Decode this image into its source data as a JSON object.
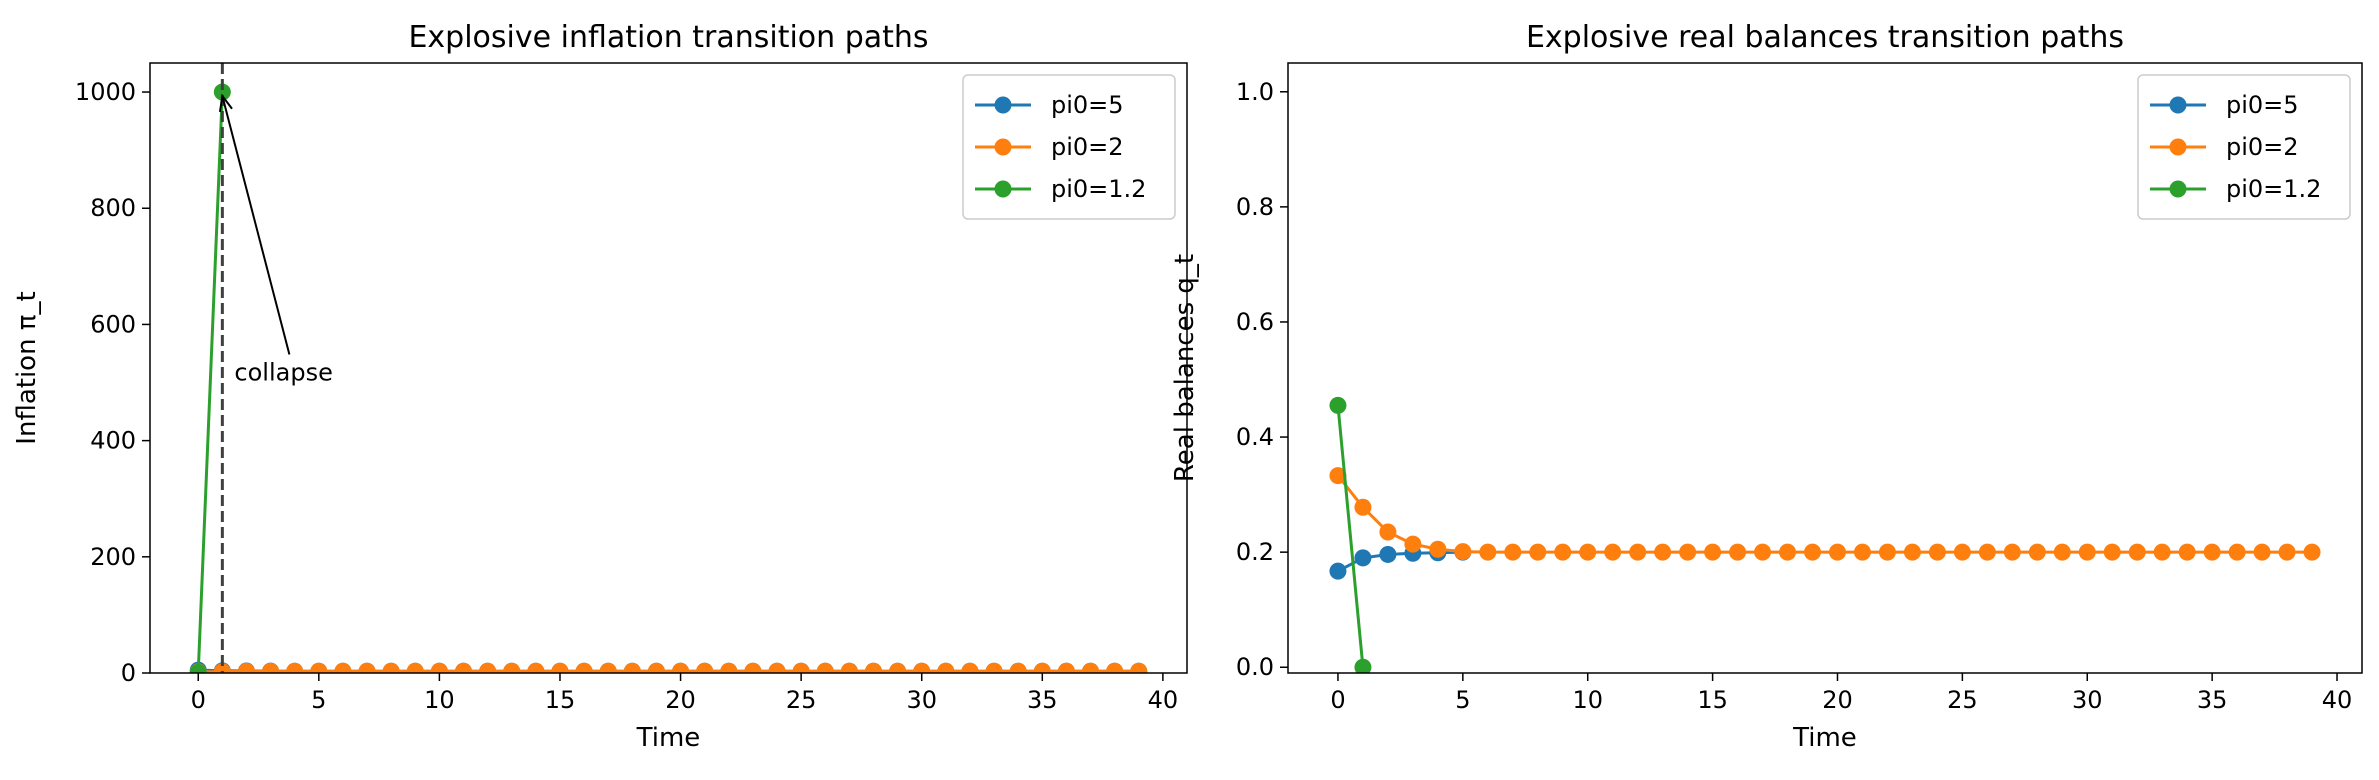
{
  "chart_data": [
    {
      "type": "line",
      "title": "Explosive inflation transition paths",
      "xlabel": "Time",
      "ylabel": "Inflation π_t",
      "xlim": [
        -2,
        41
      ],
      "ylim": [
        0,
        1050
      ],
      "xticks": [
        0,
        5,
        10,
        15,
        20,
        25,
        30,
        35,
        40
      ],
      "yticks": [
        0,
        200,
        400,
        600,
        800,
        1000
      ],
      "legend_position": "top-right",
      "grid": false,
      "vline": {
        "x": 1,
        "style": "dashed",
        "color": "#404040"
      },
      "annotation": {
        "text": "collapse",
        "xy": [
          1,
          1000
        ],
        "xytext": [
          1.5,
          500
        ]
      },
      "series": [
        {
          "name": "pi0=5",
          "color": "#1f77b4",
          "x": [
            0,
            1,
            2,
            3,
            4,
            5,
            6,
            7,
            8,
            9,
            10,
            11,
            12,
            13,
            14,
            15,
            16,
            17,
            18,
            19,
            20,
            21,
            22,
            23,
            24,
            25,
            26,
            27,
            28,
            29,
            30,
            31,
            32,
            33,
            34,
            35,
            36,
            37,
            38,
            39
          ],
          "y": [
            5,
            3.8,
            3.4,
            3.2,
            3.1,
            3.05,
            3,
            3,
            3,
            3,
            3,
            3,
            3,
            3,
            3,
            3,
            3,
            3,
            3,
            3,
            3,
            3,
            3,
            3,
            3,
            3,
            3,
            3,
            3,
            3,
            3,
            3,
            3,
            3,
            3,
            3,
            3,
            3,
            3,
            3
          ]
        },
        {
          "name": "pi0=2",
          "color": "#ff7f0e",
          "x": [
            0,
            1,
            2,
            3,
            4,
            5,
            6,
            7,
            8,
            9,
            10,
            11,
            12,
            13,
            14,
            15,
            16,
            17,
            18,
            19,
            20,
            21,
            22,
            23,
            24,
            25,
            26,
            27,
            28,
            29,
            30,
            31,
            32,
            33,
            34,
            35,
            36,
            37,
            38,
            39
          ],
          "y": [
            2,
            2.4,
            2.7,
            2.85,
            2.93,
            2.97,
            3,
            3,
            3,
            3,
            3,
            3,
            3,
            3,
            3,
            3,
            3,
            3,
            3,
            3,
            3,
            3,
            3,
            3,
            3,
            3,
            3,
            3,
            3,
            3,
            3,
            3,
            3,
            3,
            3,
            3,
            3,
            3,
            3,
            3
          ]
        },
        {
          "name": "pi0=1.2",
          "color": "#2ca02c",
          "x": [
            0,
            1
          ],
          "y": [
            1.2,
            1000
          ]
        }
      ]
    },
    {
      "type": "line",
      "title": "Explosive real balances transition paths",
      "xlabel": "Time",
      "ylabel": "Real balances q_t",
      "xlim": [
        -2,
        41
      ],
      "ylim": [
        -0.01,
        1.05
      ],
      "xticks": [
        0,
        5,
        10,
        15,
        20,
        25,
        30,
        35,
        40
      ],
      "yticks": [
        0.0,
        0.2,
        0.4,
        0.6,
        0.8,
        1.0
      ],
      "ytick_labels": [
        "0.0",
        "0.2",
        "0.4",
        "0.6",
        "0.8",
        "1.0"
      ],
      "legend_position": "top-right",
      "grid": false,
      "series": [
        {
          "name": "pi0=5",
          "color": "#1f77b4",
          "x": [
            0,
            1,
            2,
            3,
            4,
            5
          ],
          "y": [
            0.167,
            0.19,
            0.196,
            0.198,
            0.199,
            0.2
          ]
        },
        {
          "name": "pi0=2",
          "color": "#ff7f0e",
          "x": [
            0,
            1,
            2,
            3,
            4,
            5,
            6,
            7,
            8,
            9,
            10,
            11,
            12,
            13,
            14,
            15,
            16,
            17,
            18,
            19,
            20,
            21,
            22,
            23,
            24,
            25,
            26,
            27,
            28,
            29,
            30,
            31,
            32,
            33,
            34,
            35,
            36,
            37,
            38,
            39
          ],
          "y": [
            0.333,
            0.278,
            0.235,
            0.214,
            0.205,
            0.201,
            0.2,
            0.2,
            0.2,
            0.2,
            0.2,
            0.2,
            0.2,
            0.2,
            0.2,
            0.2,
            0.2,
            0.2,
            0.2,
            0.2,
            0.2,
            0.2,
            0.2,
            0.2,
            0.2,
            0.2,
            0.2,
            0.2,
            0.2,
            0.2,
            0.2,
            0.2,
            0.2,
            0.2,
            0.2,
            0.2,
            0.2,
            0.2,
            0.2,
            0.2
          ]
        },
        {
          "name": "pi0=1.2",
          "color": "#2ca02c",
          "x": [
            0,
            1
          ],
          "y": [
            0.455,
            0.0
          ]
        }
      ]
    }
  ]
}
